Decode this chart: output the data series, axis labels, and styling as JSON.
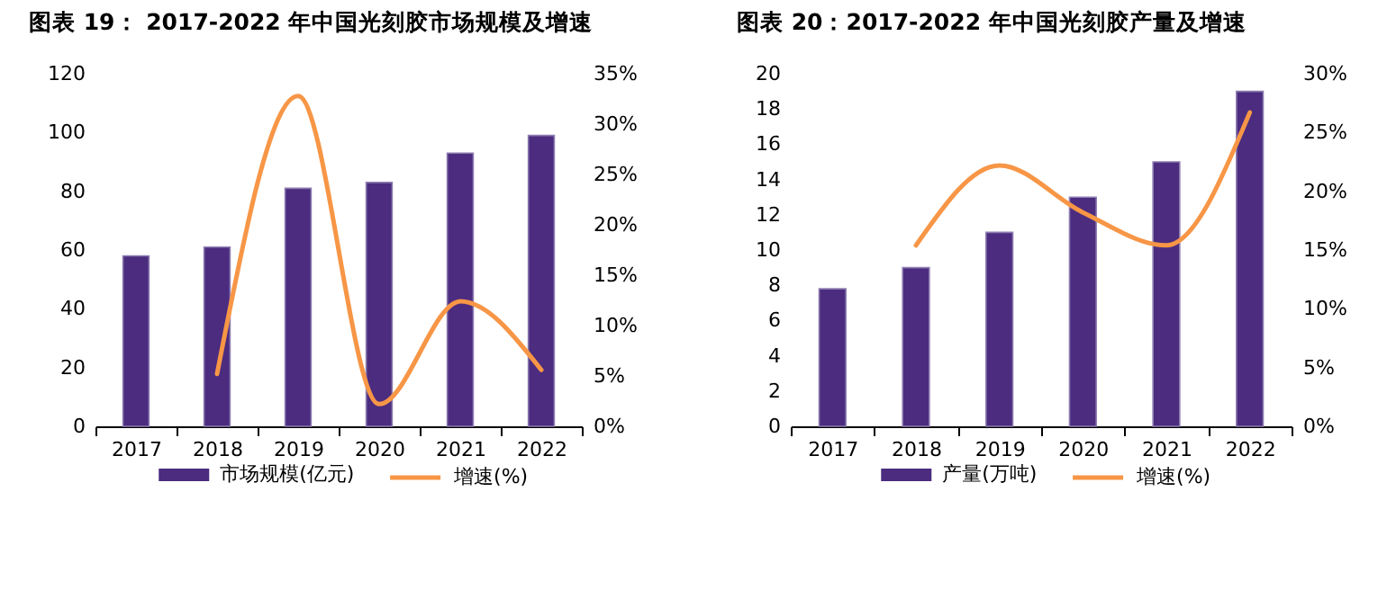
{
  "chart_data": [
    {
      "type": "bar",
      "title": "图表 19： 2017-2022 年中国光刻胶市场规模及增速",
      "categories": [
        "2017",
        "2018",
        "2019",
        "2020",
        "2021",
        "2022"
      ],
      "series": [
        {
          "name": "市场规模(亿元)",
          "color": "#4b2c7f",
          "values": [
            58,
            61,
            81,
            83,
            93,
            99
          ]
        },
        {
          "name": "增速(%)",
          "type": "line",
          "axis": "y2",
          "color": "#f79646",
          "values": [
            null,
            5.2,
            32.8,
            2.2,
            12.4,
            5.6
          ]
        }
      ],
      "ylim": [
        0,
        120
      ],
      "yticks": [
        0,
        20,
        40,
        60,
        80,
        100,
        120
      ],
      "y2lim": [
        0,
        35
      ],
      "y2ticks": [
        {
          "value": 0,
          "label": "0%"
        },
        {
          "value": 5,
          "label": "5%"
        },
        {
          "value": 10,
          "label": "10%"
        },
        {
          "value": 15,
          "label": "15%"
        },
        {
          "value": 20,
          "label": "20%"
        },
        {
          "value": 25,
          "label": "25%"
        },
        {
          "value": 30,
          "label": "30%"
        },
        {
          "value": 35,
          "label": "35%"
        }
      ],
      "legend": "bottom"
    },
    {
      "type": "bar",
      "title": "图表 20：2017-2022 年中国光刻胶产量及增速",
      "categories": [
        "2017",
        "2018",
        "2019",
        "2020",
        "2021",
        "2022"
      ],
      "series": [
        {
          "name": "产量(万吨)",
          "color": "#4b2c7f",
          "values": [
            7.8,
            9,
            11,
            13,
            15,
            19
          ]
        },
        {
          "name": "增速(%)",
          "type": "line",
          "axis": "y2",
          "color": "#f79646",
          "values": [
            null,
            15.4,
            22.2,
            18.2,
            15.4,
            26.7
          ]
        }
      ],
      "ylim": [
        0,
        20
      ],
      "yticks": [
        0,
        2,
        4,
        6,
        8,
        10,
        12,
        14,
        16,
        18,
        20
      ],
      "y2lim": [
        0,
        30
      ],
      "y2ticks": [
        {
          "value": 0,
          "label": "0%"
        },
        {
          "value": 5,
          "label": "5%"
        },
        {
          "value": 10,
          "label": "10%"
        },
        {
          "value": 15,
          "label": "15%"
        },
        {
          "value": 20,
          "label": "20%"
        },
        {
          "value": 25,
          "label": "25%"
        },
        {
          "value": 30,
          "label": "30%"
        }
      ],
      "legend": "bottom"
    }
  ]
}
